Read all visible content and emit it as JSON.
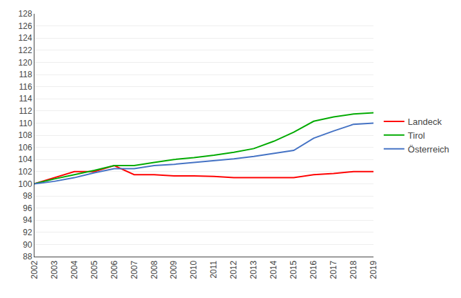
{
  "chart_data": {
    "type": "line",
    "x": [
      2002,
      2003,
      2004,
      2005,
      2006,
      2007,
      2008,
      2009,
      2010,
      2011,
      2012,
      2013,
      2014,
      2015,
      2016,
      2017,
      2018,
      2019
    ],
    "series": [
      {
        "name": "Landeck",
        "color": "#ff0000",
        "values": [
          100.0,
          101.0,
          102.0,
          102.0,
          103.0,
          101.5,
          101.5,
          101.3,
          101.3,
          101.2,
          101.0,
          101.0,
          101.0,
          101.0,
          101.5,
          101.7,
          102.0,
          102.0
        ]
      },
      {
        "name": "Tirol",
        "color": "#00aa00",
        "values": [
          100.0,
          100.8,
          101.5,
          102.2,
          103.0,
          103.0,
          103.5,
          104.0,
          104.3,
          104.7,
          105.2,
          105.8,
          107.0,
          108.5,
          110.3,
          111.0,
          111.5,
          111.7
        ]
      },
      {
        "name": "Österreich",
        "color": "#4472c4",
        "values": [
          100.0,
          100.4,
          101.0,
          101.8,
          102.5,
          102.5,
          103.0,
          103.2,
          103.5,
          103.8,
          104.1,
          104.5,
          105.0,
          105.5,
          107.5,
          108.7,
          109.8,
          110.0
        ]
      }
    ],
    "xlim": [
      2002,
      2019
    ],
    "xticks": [
      2002,
      2003,
      2004,
      2005,
      2006,
      2007,
      2008,
      2009,
      2010,
      2011,
      2012,
      2013,
      2014,
      2015,
      2016,
      2017,
      2018,
      2019
    ],
    "ylim": [
      88,
      128
    ],
    "yticks": [
      88,
      90,
      92,
      94,
      96,
      98,
      100,
      102,
      104,
      106,
      108,
      110,
      112,
      114,
      116,
      118,
      120,
      122,
      124,
      126,
      128
    ],
    "grid": "y",
    "legend": "right"
  }
}
